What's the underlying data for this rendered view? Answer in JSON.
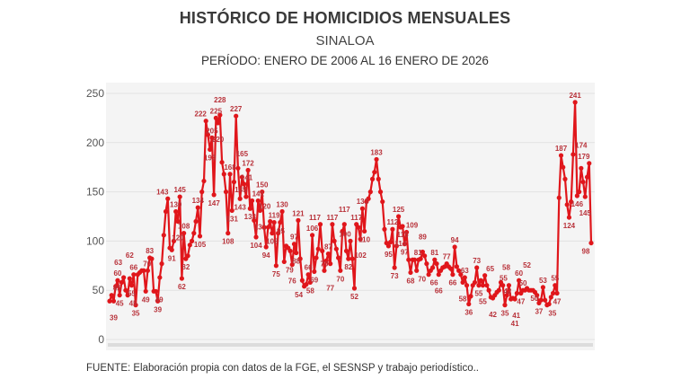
{
  "header": {
    "title": "HISTÓRICO DE HOMICIDIOS MENSUALES",
    "subtitle": "SINALOA",
    "period": "PERÍODO: ENERO DE 2006 AL 16 ENERO DE 2026"
  },
  "footer": {
    "source": "FUENTE: Elaboración propia con datos de la FGE, el SESNSP y trabajo periodístico.."
  },
  "chart_data": {
    "type": "line",
    "title": "HISTÓRICO DE HOMICIDIOS MENSUALES",
    "x_start": "2006-01",
    "x_end": "2026-01",
    "x_frequency": "monthly",
    "ylim": [
      0,
      250
    ],
    "yticks": [
      0,
      50,
      100,
      150,
      200,
      250
    ],
    "grid": true,
    "data_labels": true,
    "color": "#e0161b",
    "values": [
      39,
      45,
      39,
      54,
      60,
      45,
      58,
      63,
      50,
      45,
      62,
      55,
      66,
      35,
      66,
      68,
      70,
      70,
      49,
      70,
      83,
      82,
      49,
      49,
      39,
      63,
      77,
      106,
      130,
      143,
      93,
      91,
      100,
      130,
      120,
      145,
      62,
      108,
      82,
      85,
      96,
      100,
      108,
      120,
      134,
      105,
      150,
      161,
      222,
      208,
      193,
      205,
      147,
      225,
      220,
      228,
      180,
      168,
      150,
      108,
      168,
      131,
      160,
      227,
      174,
      143,
      165,
      158,
      145,
      172,
      133,
      141,
      121,
      104,
      141,
      131,
      150,
      114,
      94,
      114,
      120,
      108,
      119,
      75,
      108,
      119,
      130,
      79,
      95,
      93,
      90,
      76,
      97,
      88,
      121,
      82,
      60,
      54,
      56,
      66,
      58,
      106,
      69,
      83,
      92,
      117,
      90,
      70,
      80,
      87,
      77,
      117,
      100,
      92,
      83,
      70,
      110,
      117,
      90,
      82,
      100,
      82,
      52,
      117,
      114,
      102,
      133,
      110,
      140,
      143,
      150,
      163,
      170,
      183,
      163,
      150,
      140,
      112,
      98,
      95,
      99,
      112,
      73,
      95,
      125,
      114,
      115,
      97,
      109,
      81,
      68,
      81,
      81,
      70,
      81,
      82,
      89,
      85,
      77,
      66,
      70,
      73,
      81,
      77,
      66,
      70,
      73,
      74,
      77,
      74,
      72,
      66,
      94,
      74,
      70,
      66,
      58,
      63,
      55,
      36,
      44,
      55,
      58,
      73,
      55,
      60,
      55,
      65,
      55,
      50,
      43,
      42,
      45,
      48,
      50,
      58,
      55,
      35,
      45,
      55,
      41,
      42,
      41,
      47,
      60,
      47,
      50,
      50,
      52,
      50,
      50,
      50,
      48,
      45,
      37,
      40,
      53,
      40,
      35,
      36,
      43,
      47,
      55,
      47,
      144,
      187,
      175,
      163,
      137,
      124,
      140,
      188,
      241,
      146,
      150,
      174,
      160,
      145,
      165,
      179,
      98
    ]
  }
}
